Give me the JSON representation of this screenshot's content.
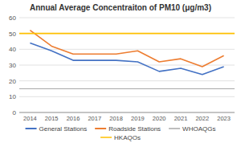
{
  "chart_data": {
    "type": "line",
    "title": "Annual Average Concentraiton of PM10 (μg/m3)",
    "categories": [
      "2014",
      "2015",
      "2016",
      "2017",
      "2018",
      "2019",
      "2020",
      "2021",
      "2022",
      "2023"
    ],
    "series": [
      {
        "name": "General Stations",
        "color": "#4472C4",
        "values": [
          44,
          39,
          33,
          33,
          33,
          32,
          26,
          28,
          24,
          29
        ]
      },
      {
        "name": "Roadside Stations",
        "color": "#ED7D31",
        "values": [
          52,
          42,
          37,
          37,
          37,
          39,
          32,
          34,
          29,
          36
        ]
      },
      {
        "name": "WHOAQGs",
        "color": "#A9A9A9",
        "type": "hline",
        "value": 15
      },
      {
        "name": "HKAQOs",
        "color": "#FFC000",
        "type": "hline",
        "value": 50
      }
    ],
    "ylim": [
      0,
      60
    ],
    "yticks": [
      0,
      10,
      20,
      30,
      40,
      50,
      60
    ],
    "grid": true,
    "legend": "bottom"
  }
}
